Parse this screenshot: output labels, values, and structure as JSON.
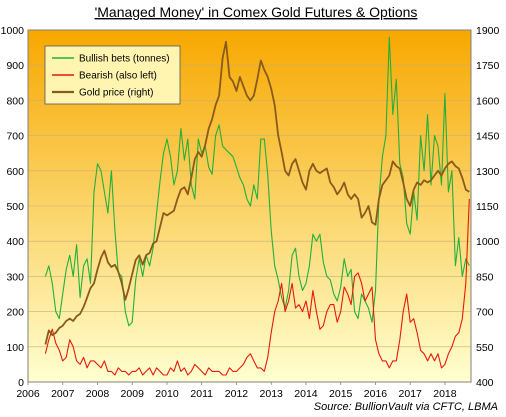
{
  "chart_data": {
    "type": "line",
    "title": "'Managed Money' in Comex Gold Futures & Options",
    "source": "Source: BullionVault via CFTC, LBMA",
    "x_ticks": [
      "2006",
      "2007",
      "2008",
      "2009",
      "2010",
      "2011",
      "2012",
      "2013",
      "2014",
      "2015",
      "2016",
      "2017",
      "2018"
    ],
    "xlim": [
      2006.0,
      2018.75
    ],
    "y_left": {
      "ticks": [
        0,
        100,
        200,
        300,
        400,
        500,
        600,
        700,
        800,
        900,
        1000
      ],
      "ylim": [
        0,
        1000
      ]
    },
    "y_right": {
      "ticks": [
        400,
        550,
        700,
        850,
        1000,
        1150,
        1300,
        1450,
        1600,
        1750,
        1900
      ],
      "ylim": [
        400,
        1900
      ]
    },
    "background": {
      "top": "#f7a800",
      "bottom": "#ffffd0"
    },
    "legend": {
      "placement": "top-left"
    },
    "series": [
      {
        "name": "Bullish bets (tonnes)",
        "axis": "left",
        "color": "#22b03c",
        "x": [
          2006.5,
          2006.6,
          2006.7,
          2006.8,
          2006.9,
          2007.0,
          2007.1,
          2007.2,
          2007.3,
          2007.4,
          2007.5,
          2007.6,
          2007.7,
          2007.8,
          2007.9,
          2008.0,
          2008.1,
          2008.2,
          2008.3,
          2008.4,
          2008.5,
          2008.6,
          2008.7,
          2008.8,
          2008.9,
          2009.0,
          2009.1,
          2009.2,
          2009.3,
          2009.4,
          2009.5,
          2009.6,
          2009.7,
          2009.8,
          2009.9,
          2010.0,
          2010.1,
          2010.2,
          2010.3,
          2010.4,
          2010.5,
          2010.6,
          2010.7,
          2010.8,
          2010.9,
          2011.0,
          2011.1,
          2011.2,
          2011.3,
          2011.4,
          2011.5,
          2011.6,
          2011.7,
          2011.8,
          2011.9,
          2012.0,
          2012.1,
          2012.2,
          2012.3,
          2012.4,
          2012.5,
          2012.6,
          2012.7,
          2012.8,
          2012.9,
          2013.0,
          2013.1,
          2013.2,
          2013.3,
          2013.4,
          2013.5,
          2013.6,
          2013.7,
          2013.8,
          2013.9,
          2014.0,
          2014.1,
          2014.2,
          2014.3,
          2014.4,
          2014.5,
          2014.6,
          2014.7,
          2014.8,
          2014.9,
          2015.0,
          2015.1,
          2015.2,
          2015.3,
          2015.4,
          2015.5,
          2015.6,
          2015.7,
          2015.8,
          2015.9,
          2016.0,
          2016.1,
          2016.2,
          2016.3,
          2016.4,
          2016.5,
          2016.6,
          2016.7,
          2016.8,
          2016.9,
          2017.0,
          2017.1,
          2017.2,
          2017.3,
          2017.4,
          2017.5,
          2017.6,
          2017.7,
          2017.8,
          2017.9,
          2018.0,
          2018.1,
          2018.2,
          2018.3,
          2018.4,
          2018.5,
          2018.6,
          2018.7
        ],
        "values": [
          300,
          330,
          280,
          200,
          180,
          250,
          320,
          360,
          300,
          390,
          240,
          330,
          350,
          280,
          540,
          620,
          600,
          540,
          480,
          600,
          430,
          310,
          300,
          200,
          160,
          170,
          290,
          350,
          300,
          360,
          330,
          380,
          480,
          570,
          650,
          690,
          640,
          560,
          600,
          720,
          630,
          690,
          560,
          520,
          690,
          650,
          670,
          610,
          590,
          700,
          730,
          670,
          660,
          650,
          640,
          610,
          580,
          560,
          520,
          500,
          560,
          520,
          690,
          690,
          590,
          430,
          330,
          290,
          240,
          210,
          260,
          360,
          380,
          300,
          260,
          280,
          330,
          420,
          400,
          420,
          340,
          300,
          290,
          250,
          230,
          270,
          350,
          300,
          320,
          200,
          180,
          250,
          230,
          210,
          170,
          260,
          520,
          640,
          700,
          980,
          760,
          860,
          620,
          580,
          450,
          420,
          540,
          460,
          700,
          600,
          760,
          560,
          700,
          670,
          560,
          820,
          540,
          600,
          330,
          410,
          300,
          350,
          330
        ],
        "style": "solid"
      },
      {
        "name": "Bearish (also left)",
        "axis": "left",
        "color": "#e8190c",
        "x": [
          2006.5,
          2006.6,
          2006.7,
          2006.8,
          2006.9,
          2007.0,
          2007.1,
          2007.2,
          2007.3,
          2007.4,
          2007.5,
          2007.6,
          2007.7,
          2007.8,
          2007.9,
          2008.0,
          2008.1,
          2008.2,
          2008.3,
          2008.4,
          2008.5,
          2008.6,
          2008.7,
          2008.8,
          2008.9,
          2009.0,
          2009.1,
          2009.2,
          2009.3,
          2009.4,
          2009.5,
          2009.6,
          2009.7,
          2009.8,
          2009.9,
          2010.0,
          2010.1,
          2010.2,
          2010.3,
          2010.4,
          2010.5,
          2010.6,
          2010.7,
          2010.8,
          2010.9,
          2011.0,
          2011.1,
          2011.2,
          2011.3,
          2011.4,
          2011.5,
          2011.6,
          2011.7,
          2011.8,
          2011.9,
          2012.0,
          2012.1,
          2012.2,
          2012.3,
          2012.4,
          2012.5,
          2012.6,
          2012.7,
          2012.8,
          2012.9,
          2013.0,
          2013.1,
          2013.2,
          2013.3,
          2013.4,
          2013.5,
          2013.6,
          2013.7,
          2013.8,
          2013.9,
          2014.0,
          2014.1,
          2014.2,
          2014.3,
          2014.4,
          2014.5,
          2014.6,
          2014.7,
          2014.8,
          2014.9,
          2015.0,
          2015.1,
          2015.2,
          2015.3,
          2015.4,
          2015.5,
          2015.6,
          2015.7,
          2015.8,
          2015.9,
          2016.0,
          2016.1,
          2016.2,
          2016.3,
          2016.4,
          2016.5,
          2016.6,
          2016.7,
          2016.8,
          2016.9,
          2017.0,
          2017.1,
          2017.2,
          2017.3,
          2017.4,
          2017.5,
          2017.6,
          2017.7,
          2017.8,
          2017.9,
          2018.0,
          2018.1,
          2018.2,
          2018.3,
          2018.4,
          2018.5,
          2018.6,
          2018.7
        ],
        "values": [
          80,
          120,
          150,
          110,
          90,
          60,
          70,
          120,
          100,
          60,
          50,
          70,
          40,
          60,
          60,
          50,
          40,
          60,
          30,
          30,
          20,
          40,
          30,
          30,
          20,
          30,
          30,
          40,
          20,
          30,
          40,
          20,
          40,
          30,
          20,
          20,
          40,
          30,
          60,
          30,
          40,
          20,
          30,
          50,
          40,
          30,
          20,
          40,
          30,
          30,
          30,
          20,
          20,
          40,
          30,
          30,
          40,
          50,
          70,
          80,
          60,
          40,
          40,
          30,
          70,
          140,
          200,
          230,
          280,
          200,
          230,
          280,
          210,
          220,
          200,
          230,
          180,
          260,
          200,
          150,
          160,
          200,
          220,
          220,
          170,
          200,
          270,
          250,
          220,
          300,
          310,
          280,
          230,
          250,
          270,
          120,
          80,
          60,
          60,
          40,
          60,
          60,
          120,
          200,
          250,
          170,
          180,
          140,
          90,
          80,
          60,
          80,
          60,
          80,
          40,
          50,
          80,
          100,
          130,
          140,
          180,
          280,
          520
        ],
        "style": "solid"
      },
      {
        "name": "Gold price (right)",
        "axis": "right",
        "color": "#8a5a1a",
        "x": [
          2006.5,
          2006.6,
          2006.7,
          2006.8,
          2006.9,
          2007.0,
          2007.1,
          2007.2,
          2007.3,
          2007.4,
          2007.5,
          2007.6,
          2007.7,
          2007.8,
          2007.9,
          2008.0,
          2008.1,
          2008.2,
          2008.3,
          2008.4,
          2008.5,
          2008.6,
          2008.7,
          2008.8,
          2008.9,
          2009.0,
          2009.1,
          2009.2,
          2009.3,
          2009.4,
          2009.5,
          2009.6,
          2009.7,
          2009.8,
          2009.9,
          2010.0,
          2010.1,
          2010.2,
          2010.3,
          2010.4,
          2010.5,
          2010.6,
          2010.7,
          2010.8,
          2010.9,
          2011.0,
          2011.1,
          2011.2,
          2011.3,
          2011.4,
          2011.5,
          2011.6,
          2011.7,
          2011.8,
          2011.9,
          2012.0,
          2012.1,
          2012.2,
          2012.3,
          2012.4,
          2012.5,
          2012.6,
          2012.7,
          2012.8,
          2012.9,
          2013.0,
          2013.1,
          2013.2,
          2013.3,
          2013.4,
          2013.5,
          2013.6,
          2013.7,
          2013.8,
          2013.9,
          2014.0,
          2014.1,
          2014.2,
          2014.3,
          2014.4,
          2014.5,
          2014.6,
          2014.7,
          2014.8,
          2014.9,
          2015.0,
          2015.1,
          2015.2,
          2015.3,
          2015.4,
          2015.5,
          2015.6,
          2015.7,
          2015.8,
          2015.9,
          2016.0,
          2016.1,
          2016.2,
          2016.3,
          2016.4,
          2016.5,
          2016.6,
          2016.7,
          2016.8,
          2016.9,
          2017.0,
          2017.1,
          2017.2,
          2017.3,
          2017.4,
          2017.5,
          2017.6,
          2017.7,
          2017.8,
          2017.9,
          2018.0,
          2018.1,
          2018.2,
          2018.3,
          2018.4,
          2018.5,
          2018.6,
          2018.7
        ],
        "values": [
          560,
          620,
          600,
          610,
          630,
          640,
          660,
          670,
          660,
          680,
          690,
          720,
          760,
          800,
          820,
          880,
          930,
          960,
          910,
          890,
          900,
          870,
          820,
          750,
          800,
          860,
          920,
          940,
          900,
          940,
          950,
          990,
          1000,
          1060,
          1120,
          1110,
          1120,
          1130,
          1180,
          1220,
          1230,
          1200,
          1270,
          1350,
          1380,
          1360,
          1410,
          1480,
          1520,
          1580,
          1620,
          1780,
          1850,
          1700,
          1680,
          1640,
          1700,
          1660,
          1620,
          1600,
          1620,
          1690,
          1770,
          1730,
          1700,
          1650,
          1580,
          1450,
          1380,
          1300,
          1280,
          1330,
          1350,
          1300,
          1250,
          1220,
          1300,
          1330,
          1300,
          1290,
          1300,
          1310,
          1250,
          1230,
          1200,
          1220,
          1250,
          1200,
          1180,
          1200,
          1180,
          1100,
          1120,
          1150,
          1080,
          1070,
          1180,
          1240,
          1260,
          1280,
          1340,
          1320,
          1310,
          1250,
          1180,
          1150,
          1220,
          1250,
          1240,
          1260,
          1250,
          1260,
          1280,
          1300,
          1280,
          1310,
          1330,
          1340,
          1320,
          1310,
          1270,
          1220,
          1210
        ],
        "style": "solid"
      }
    ]
  }
}
